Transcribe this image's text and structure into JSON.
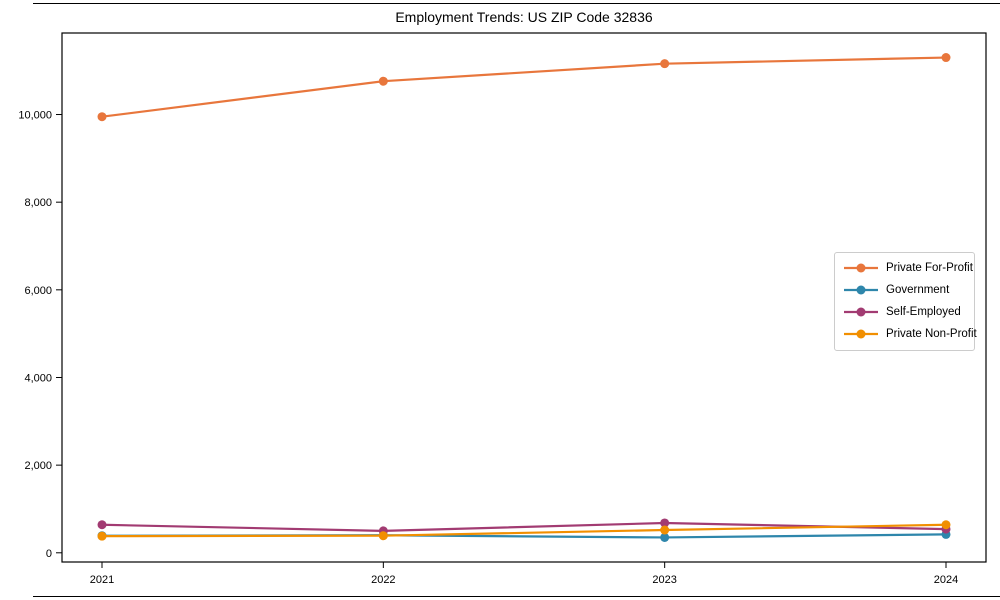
{
  "figure": {
    "title": "Employment Trends: US ZIP Code 32836",
    "background_color": "#ffffff",
    "frame_color": "#000000",
    "legend_border_color": "#cccccc"
  },
  "chart_data": {
    "type": "line",
    "title": "Employment Trends: US ZIP Code 32836",
    "x": [
      2021,
      2022,
      2023,
      2024
    ],
    "x_tick_labels": [
      "2021",
      "2022",
      "2023",
      "2024"
    ],
    "y_ticks": [
      0,
      2000,
      4000,
      6000,
      8000,
      10000
    ],
    "y_tick_labels": [
      "0",
      "2,000",
      "4,000",
      "6,000",
      "8,000",
      "10,000"
    ],
    "ylim": [
      -210,
      11860
    ],
    "xlabel": "",
    "ylabel": "",
    "grid": false,
    "legend_position": "center-right",
    "marker": "circle",
    "series": [
      {
        "name": "Private For-Profit",
        "color": "#E8763C",
        "values": [
          9950,
          10760,
          11160,
          11300
        ]
      },
      {
        "name": "Government",
        "color": "#2E86AB",
        "values": [
          390,
          400,
          350,
          420
        ]
      },
      {
        "name": "Self-Employed",
        "color": "#A23B72",
        "values": [
          640,
          500,
          680,
          540
        ]
      },
      {
        "name": "Private Non-Profit",
        "color": "#F18F01",
        "values": [
          380,
          390,
          520,
          640
        ]
      }
    ]
  }
}
